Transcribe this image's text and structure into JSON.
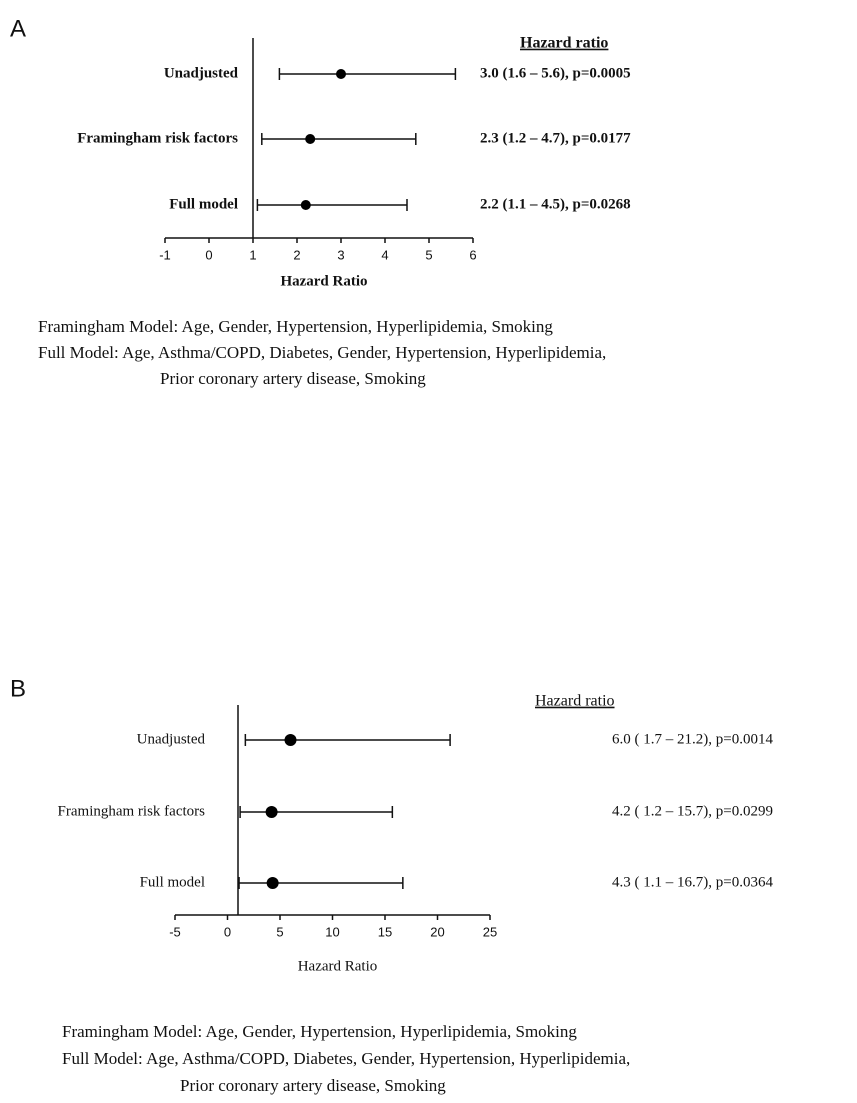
{
  "chart_data": [
    {
      "type": "forest",
      "panel_label": "A",
      "header": "Hazard ratio",
      "categories": [
        "Unadjusted",
        "Framingham risk factors",
        "Full model"
      ],
      "values": [
        3.0,
        2.3,
        2.2
      ],
      "lower": [
        1.6,
        1.2,
        1.1
      ],
      "upper": [
        5.6,
        4.7,
        4.5
      ],
      "annotations": [
        "3.0  (1.6 – 5.6), p=0.0005",
        "2.3  (1.2 – 4.7), p=0.0177",
        "2.2  (1.1 – 4.5), p=0.0268"
      ],
      "xlim": [
        -1,
        6
      ],
      "xticks": [
        -1,
        0,
        1,
        2,
        3,
        4,
        5,
        6
      ],
      "xlabel": "Hazard  Ratio",
      "reference_line": 1,
      "notes": [
        "Framingham Model: Age, Gender, Hypertension, Hyperlipidemia, Smoking",
        "Full Model:  Age, Asthma/COPD, Diabetes, Gender, Hypertension, Hyperlipidemia,",
        "Prior coronary artery disease, Smoking"
      ]
    },
    {
      "type": "forest",
      "panel_label": "B",
      "header": "Hazard ratio",
      "categories": [
        "Unadjusted",
        "Framingham risk factors",
        "Full model"
      ],
      "values": [
        6.0,
        4.2,
        4.3
      ],
      "lower": [
        1.7,
        1.2,
        1.1
      ],
      "upper": [
        21.2,
        15.7,
        16.7
      ],
      "annotations": [
        "6.0 ( 1.7 – 21.2), p=0.0014",
        "4.2 ( 1.2 – 15.7), p=0.0299",
        "4.3 ( 1.1 – 16.7), p=0.0364"
      ],
      "xlim": [
        -5,
        25
      ],
      "xticks": [
        -5,
        0,
        5,
        10,
        15,
        20,
        25
      ],
      "xlabel": "Hazard  Ratio",
      "reference_line": 1,
      "notes": [
        "Framingham Model: Age, Gender, Hypertension, Hyperlipidemia, Smoking",
        "Full Model:  Age, Asthma/COPD, Diabetes, Gender, Hypertension, Hyperlipidemia,",
        "Prior coronary artery disease, Smoking"
      ]
    }
  ]
}
